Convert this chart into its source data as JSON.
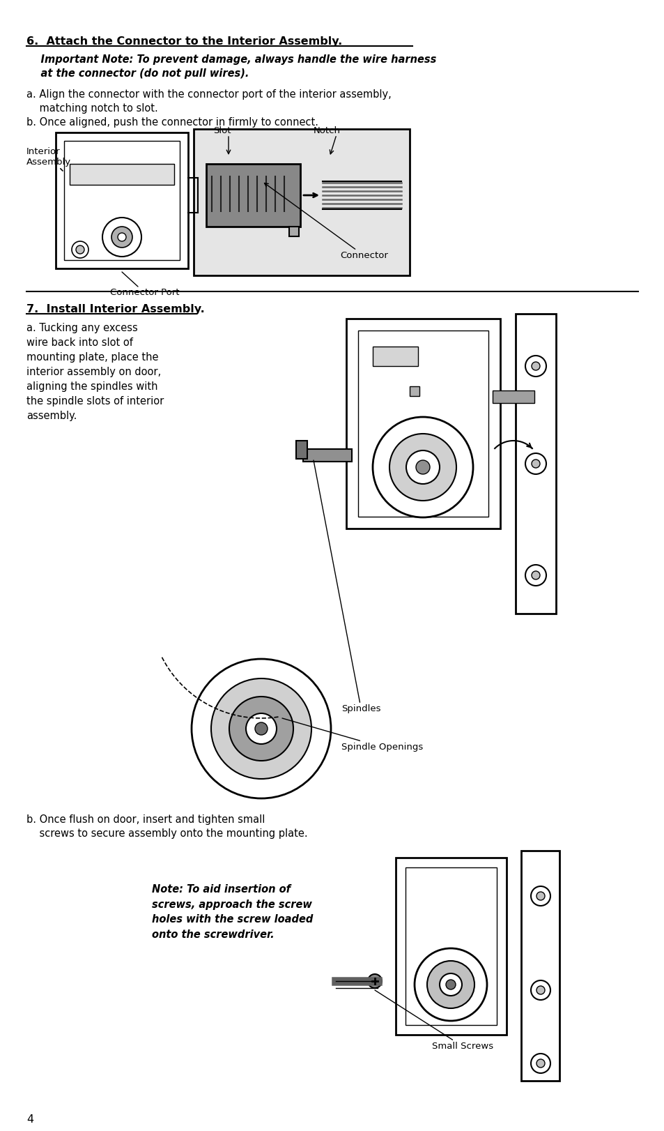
{
  "bg_color": "#ffffff",
  "page_number": "4",
  "section6_title": "6.  Attach the Connector to the Interior Assembly.",
  "section6_note": "    Important Note: To prevent damage, always handle the wire harness\n    at the connector (do not pull wires).",
  "section6_a": "a. Align the connector with the connector port of the interior assembly,\n    matching notch to slot.",
  "section6_b": "b. Once aligned, push the connector in firmly to connect.",
  "label_interior_assembly": "Interior\nAssembly",
  "label_slot": "Slot",
  "label_notch": "Notch",
  "label_connector": "Connector",
  "label_connector_port": "Connector Port",
  "section7_title": "7.  Install Interior Assembly.",
  "section7_a": "a. Tucking any excess\nwire back into slot of\nmounting plate, place the\ninterior assembly on door,\naligning the spindles with\nthe spindle slots of interior\nassembly.",
  "label_spindles": "Spindles",
  "label_spindle_openings": "Spindle Openings",
  "section7_b": "b. Once flush on door, insert and tighten small\n    screws to secure assembly onto the mounting plate.",
  "section7_note": "Note: To aid insertion of\nscrews, approach the screw\nholes with the screw loaded\nonto the screwdriver.",
  "label_small_screws": "Small Screws",
  "text_color": "#000000",
  "title_fontsize": 11.5,
  "body_fontsize": 10.5,
  "label_fontsize": 9.5
}
